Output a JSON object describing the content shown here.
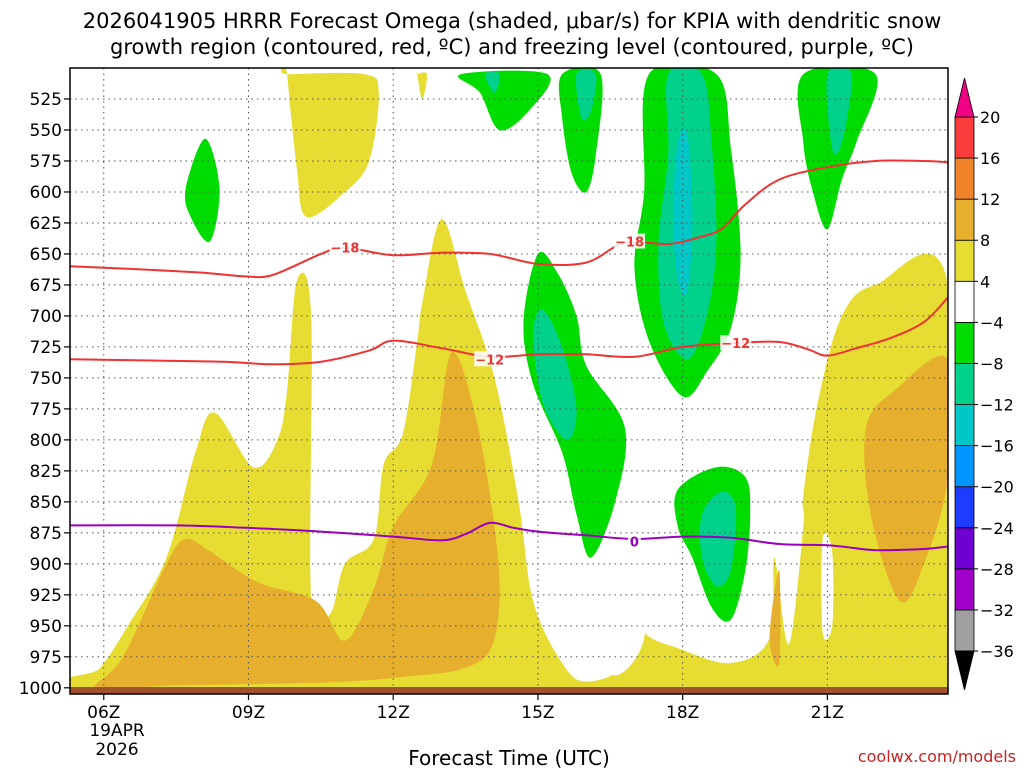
{
  "chart_data": {
    "type": "contour",
    "title_line1": "2026041905 HRRR Forecast Omega (shaded, μbar/s) for KPIA with dendritic snow",
    "title_line2": "growth region (contoured, red, ºC) and freezing level (contoured, purple, ºC)",
    "xlabel": "Forecast Time (UTC)",
    "credit": "coolwx.com/models",
    "x_range_hours": [
      5.3,
      23.5
    ],
    "x_ticks": [
      {
        "hour": 6,
        "label": "06Z"
      },
      {
        "hour": 9,
        "label": "09Z"
      },
      {
        "hour": 12,
        "label": "12Z"
      },
      {
        "hour": 15,
        "label": "15Z"
      },
      {
        "hour": 18,
        "label": "18Z"
      },
      {
        "hour": 21,
        "label": "21Z"
      }
    ],
    "date_label_line1": "19APR",
    "date_label_line2": "2026",
    "y_range_hpa": [
      1005,
      500
    ],
    "y_ticks": [
      525,
      550,
      575,
      600,
      625,
      650,
      675,
      700,
      725,
      750,
      775,
      800,
      825,
      850,
      875,
      900,
      925,
      950,
      975,
      1000
    ],
    "colorbar": {
      "levels": [
        -36,
        -32,
        -28,
        -24,
        -20,
        -16,
        -12,
        -8,
        -4,
        4,
        8,
        12,
        16,
        20
      ],
      "bins": [
        {
          "color": "#a0a0a0"
        },
        {
          "color": "#a000c8"
        },
        {
          "color": "#6e00d2"
        },
        {
          "color": "#1e3cff"
        },
        {
          "color": "#0096ff"
        },
        {
          "color": "#00c8c8"
        },
        {
          "color": "#00d28c"
        },
        {
          "color": "#00dc00"
        },
        {
          "color": "#ffffff"
        },
        {
          "color": "#e6dc32"
        },
        {
          "color": "#e6af2d"
        },
        {
          "color": "#f08228"
        },
        {
          "color": "#fa3c3c"
        }
      ],
      "under_color": "#000000",
      "over_color": "#f00082"
    },
    "omega_regions": [
      {
        "color": "#e6dc32",
        "points": [
          [
            5.3,
            1003
          ],
          [
            5.9,
            985
          ],
          [
            6.5,
            950
          ],
          [
            7.3,
            895
          ],
          [
            7.9,
            810
          ],
          [
            8.3,
            778
          ],
          [
            9.1,
            822
          ],
          [
            9.6,
            800
          ],
          [
            9.8,
            760
          ],
          [
            10.0,
            672
          ],
          [
            10.3,
            700
          ],
          [
            10.3,
            930
          ],
          [
            10.7,
            940
          ],
          [
            11.0,
            900
          ],
          [
            11.6,
            880
          ],
          [
            11.8,
            820
          ],
          [
            12.2,
            795
          ],
          [
            12.5,
            720
          ],
          [
            12.6,
            690
          ],
          [
            13.0,
            622
          ],
          [
            13.5,
            680
          ],
          [
            14.1,
            750
          ],
          [
            14.6,
            850
          ],
          [
            14.9,
            930
          ],
          [
            15.5,
            980
          ],
          [
            16.0,
            995
          ],
          [
            16.8,
            980
          ],
          [
            17.0,
            925
          ],
          [
            17.2,
            955
          ],
          [
            17.9,
            968
          ],
          [
            19.0,
            980
          ],
          [
            19.8,
            960
          ],
          [
            19.9,
            895
          ],
          [
            20.2,
            965
          ],
          [
            20.5,
            870
          ],
          [
            20.5,
            845
          ],
          [
            20.8,
            770
          ],
          [
            21.3,
            700
          ],
          [
            22.0,
            675
          ],
          [
            23.5,
            675
          ],
          [
            23.5,
            1003
          ]
        ]
      },
      {
        "color": "#e6dc32",
        "points": [
          [
            9.8,
            505
          ],
          [
            11.4,
            505
          ],
          [
            11.7,
            520
          ],
          [
            11.5,
            575
          ],
          [
            11.0,
            600
          ],
          [
            10.2,
            620
          ],
          [
            10.0,
            580
          ],
          [
            9.8,
            505
          ]
        ]
      },
      {
        "color": "#e6dc32",
        "points": [
          [
            12.5,
            505
          ],
          [
            12.7,
            505
          ],
          [
            12.6,
            525
          ],
          [
            12.5,
            505
          ]
        ]
      },
      {
        "color": "#e6dc32",
        "points": [
          [
            18.5,
            505
          ],
          [
            18.7,
            505
          ],
          [
            18.6,
            520
          ],
          [
            18.5,
            505
          ]
        ]
      },
      {
        "color": "#e6dc32",
        "points": [
          [
            20.8,
            505
          ],
          [
            21.2,
            505
          ],
          [
            21.1,
            530
          ],
          [
            20.8,
            505
          ]
        ]
      },
      {
        "color": "#ffffff",
        "points": [
          [
            16.2,
            905
          ],
          [
            16.8,
            880
          ],
          [
            17.1,
            895
          ],
          [
            17.2,
            960
          ],
          [
            16.6,
            990
          ],
          [
            16.1,
            960
          ]
        ]
      },
      {
        "color": "#ffffff",
        "points": [
          [
            20.9,
            880
          ],
          [
            21.1,
            890
          ],
          [
            21.1,
            950
          ],
          [
            20.9,
            955
          ]
        ]
      },
      {
        "color": "#e6af2d",
        "points": [
          [
            5.8,
            1000
          ],
          [
            6.4,
            975
          ],
          [
            7.3,
            900
          ],
          [
            7.7,
            880
          ],
          [
            8.2,
            890
          ],
          [
            9.2,
            915
          ],
          [
            10.4,
            930
          ],
          [
            11.0,
            962
          ],
          [
            11.6,
            920
          ],
          [
            12.0,
            870
          ],
          [
            12.8,
            820
          ],
          [
            13.2,
            730
          ],
          [
            13.7,
            780
          ],
          [
            14.1,
            870
          ],
          [
            14.2,
            930
          ],
          [
            14.0,
            970
          ],
          [
            13.4,
            985
          ],
          [
            12.5,
            990
          ],
          [
            11.0,
            995
          ],
          [
            9.0,
            997
          ],
          [
            7.5,
            998
          ],
          [
            6.5,
            1000
          ]
        ]
      },
      {
        "color": "#e6af2d",
        "points": [
          [
            19.8,
            960
          ],
          [
            20.0,
            905
          ],
          [
            20.0,
            980
          ]
        ]
      },
      {
        "color": "#e6af2d",
        "points": [
          [
            21.8,
            790
          ],
          [
            22.4,
            760
          ],
          [
            23.5,
            735
          ],
          [
            23.5,
            830
          ],
          [
            23.0,
            900
          ],
          [
            22.5,
            930
          ],
          [
            21.9,
            860
          ]
        ]
      },
      {
        "color": "#00dc00",
        "points": [
          [
            7.7,
            597
          ],
          [
            8.1,
            557
          ],
          [
            8.4,
            597
          ],
          [
            8.2,
            640
          ],
          [
            7.8,
            620
          ]
        ]
      },
      {
        "color": "#00dc00",
        "points": [
          [
            13.4,
            505
          ],
          [
            15.2,
            505
          ],
          [
            14.8,
            535
          ],
          [
            14.2,
            550
          ],
          [
            13.8,
            520
          ]
        ]
      },
      {
        "color": "#00dc00",
        "points": [
          [
            15.5,
            505
          ],
          [
            16.3,
            505
          ],
          [
            16.2,
            570
          ],
          [
            16.0,
            600
          ],
          [
            15.7,
            585
          ],
          [
            15.5,
            540
          ]
        ]
      },
      {
        "color": "#00dc00",
        "points": [
          [
            17.3,
            505
          ],
          [
            18.7,
            505
          ],
          [
            19.0,
            565
          ],
          [
            19.2,
            650
          ],
          [
            19.0,
            710
          ],
          [
            18.5,
            745
          ],
          [
            18.0,
            765
          ],
          [
            17.3,
            720
          ],
          [
            17.0,
            660
          ],
          [
            17.2,
            600
          ]
        ]
      },
      {
        "color": "#00dc00",
        "points": [
          [
            14.7,
            705
          ],
          [
            15.0,
            650
          ],
          [
            15.4,
            665
          ],
          [
            15.8,
            700
          ],
          [
            16.0,
            740
          ],
          [
            16.8,
            790
          ],
          [
            16.6,
            850
          ],
          [
            16.1,
            895
          ],
          [
            15.8,
            860
          ],
          [
            15.5,
            810
          ],
          [
            14.9,
            755
          ]
        ]
      },
      {
        "color": "#00dc00",
        "points": [
          [
            20.5,
            505
          ],
          [
            22.0,
            505
          ],
          [
            21.6,
            560
          ],
          [
            21.3,
            590
          ],
          [
            21.0,
            630
          ],
          [
            20.7,
            600
          ],
          [
            20.5,
            560
          ]
        ]
      },
      {
        "color": "#00dc00",
        "points": [
          [
            17.9,
            840
          ],
          [
            18.7,
            822
          ],
          [
            19.3,
            830
          ],
          [
            19.4,
            860
          ],
          [
            19.3,
            905
          ],
          [
            19.0,
            945
          ],
          [
            18.6,
            935
          ],
          [
            18.2,
            895
          ],
          [
            17.9,
            870
          ]
        ]
      },
      {
        "color": "#00d28c",
        "points": [
          [
            17.7,
            505
          ],
          [
            18.4,
            505
          ],
          [
            18.6,
            560
          ],
          [
            18.7,
            640
          ],
          [
            18.5,
            700
          ],
          [
            18.1,
            735
          ],
          [
            17.6,
            705
          ],
          [
            17.5,
            640
          ],
          [
            17.7,
            570
          ]
        ]
      },
      {
        "color": "#00d28c",
        "points": [
          [
            14.9,
            715
          ],
          [
            15.1,
            695
          ],
          [
            15.5,
            725
          ],
          [
            15.8,
            775
          ],
          [
            15.6,
            800
          ],
          [
            15.1,
            770
          ]
        ]
      },
      {
        "color": "#00d28c",
        "points": [
          [
            18.4,
            860
          ],
          [
            18.8,
            842
          ],
          [
            19.1,
            855
          ],
          [
            19.0,
            905
          ],
          [
            18.7,
            918
          ],
          [
            18.4,
            895
          ]
        ]
      },
      {
        "color": "#00d28c",
        "points": [
          [
            13.9,
            505
          ],
          [
            14.2,
            505
          ],
          [
            14.1,
            520
          ]
        ]
      },
      {
        "color": "#00d28c",
        "points": [
          [
            15.8,
            505
          ],
          [
            16.2,
            505
          ],
          [
            16.1,
            535
          ],
          [
            15.9,
            540
          ]
        ]
      },
      {
        "color": "#00d28c",
        "points": [
          [
            21.0,
            505
          ],
          [
            21.5,
            505
          ],
          [
            21.3,
            560
          ],
          [
            21.1,
            565
          ]
        ]
      },
      {
        "color": "#00c8c8",
        "points": [
          [
            17.9,
            560
          ],
          [
            18.1,
            555
          ],
          [
            18.2,
            620
          ],
          [
            18.1,
            680
          ],
          [
            17.9,
            670
          ],
          [
            17.8,
            620
          ]
        ]
      }
    ],
    "contours": [
      {
        "name": "dgz-minus18",
        "color": "#ee3333",
        "label": "−18",
        "label_positions": [
          [
            11.0,
            645
          ],
          [
            16.9,
            640
          ]
        ],
        "points": [
          [
            5.3,
            660
          ],
          [
            6.5,
            662
          ],
          [
            8.0,
            665
          ],
          [
            8.9,
            668
          ],
          [
            9.5,
            667
          ],
          [
            10.5,
            650
          ],
          [
            11.0,
            645
          ],
          [
            12.0,
            651
          ],
          [
            13.0,
            649
          ],
          [
            14.0,
            650
          ],
          [
            15.0,
            658
          ],
          [
            16.0,
            657
          ],
          [
            16.8,
            641
          ],
          [
            17.7,
            642
          ],
          [
            18.3,
            637
          ],
          [
            18.8,
            630
          ],
          [
            19.3,
            610
          ],
          [
            20.0,
            590
          ],
          [
            21.0,
            580
          ],
          [
            22.0,
            575
          ],
          [
            23.0,
            575
          ],
          [
            23.5,
            576
          ]
        ]
      },
      {
        "name": "dgz-minus12",
        "color": "#ee3333",
        "label": "−12",
        "label_positions": [
          [
            14.0,
            735
          ],
          [
            19.1,
            722
          ]
        ],
        "points": [
          [
            5.3,
            735
          ],
          [
            7.0,
            736
          ],
          [
            8.5,
            737
          ],
          [
            9.5,
            739
          ],
          [
            10.5,
            737
          ],
          [
            11.5,
            728
          ],
          [
            12.0,
            720
          ],
          [
            13.0,
            726
          ],
          [
            14.0,
            733
          ],
          [
            15.0,
            731
          ],
          [
            16.0,
            731
          ],
          [
            17.0,
            733
          ],
          [
            18.0,
            725
          ],
          [
            19.0,
            722
          ],
          [
            20.0,
            721
          ],
          [
            20.6,
            727
          ],
          [
            21.0,
            732
          ],
          [
            21.6,
            726
          ],
          [
            22.3,
            718
          ],
          [
            23.0,
            705
          ],
          [
            23.5,
            685
          ]
        ]
      },
      {
        "name": "freezing-level-0",
        "color": "#9900bb",
        "label": "0",
        "label_positions": [
          [
            17.0,
            882
          ]
        ],
        "points": [
          [
            5.3,
            869
          ],
          [
            7.5,
            869
          ],
          [
            9.0,
            871
          ],
          [
            10.5,
            874
          ],
          [
            12.0,
            878
          ],
          [
            13.0,
            881
          ],
          [
            13.5,
            876
          ],
          [
            14.0,
            867
          ],
          [
            14.5,
            871
          ],
          [
            15.0,
            874
          ],
          [
            16.0,
            877
          ],
          [
            17.0,
            880
          ],
          [
            18.0,
            878
          ],
          [
            19.0,
            879
          ],
          [
            20.0,
            884
          ],
          [
            21.0,
            885
          ],
          [
            21.5,
            887
          ],
          [
            22.0,
            889
          ],
          [
            23.0,
            888
          ],
          [
            23.5,
            886
          ]
        ]
      }
    ],
    "ground_color": "#a0522d"
  }
}
